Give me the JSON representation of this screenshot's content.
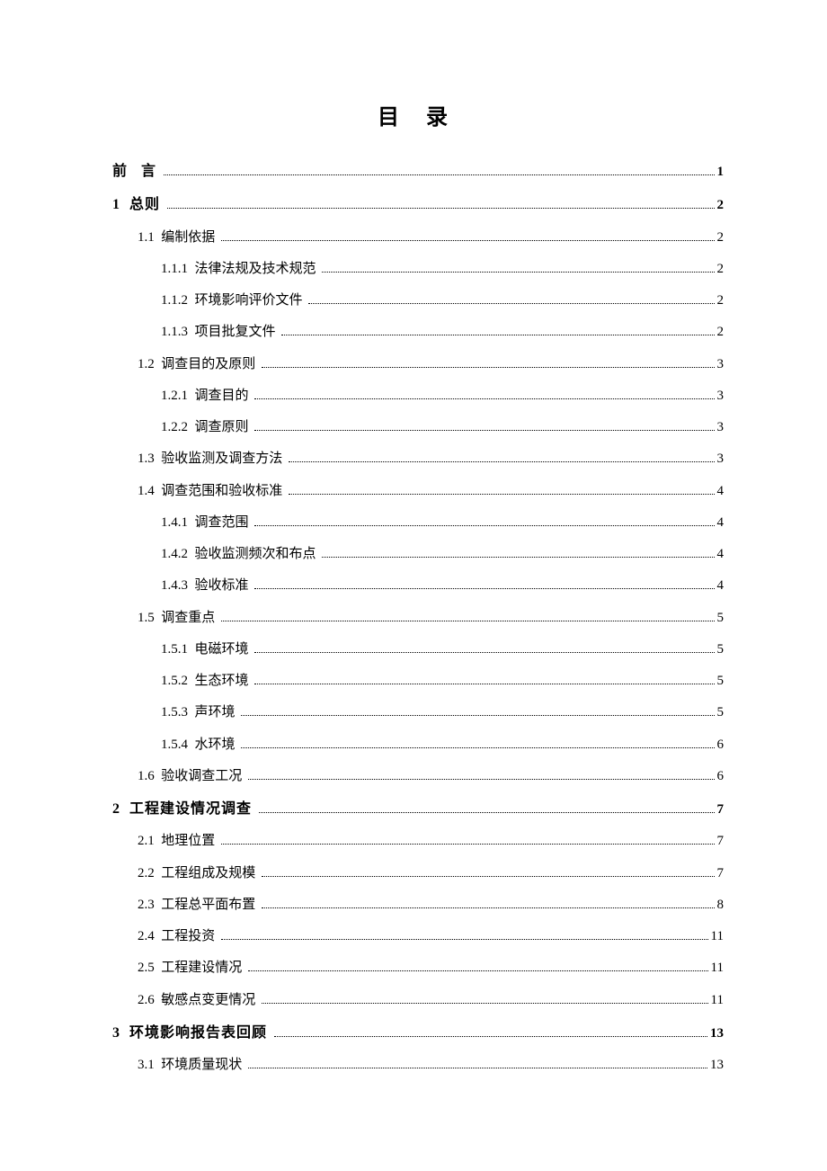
{
  "title": "目 录",
  "text_color": "#000000",
  "background_color": "#ffffff",
  "title_fontsize": 24,
  "body_fontsize": 15,
  "entries": [
    {
      "level": 0,
      "num": "前",
      "gap": "   ",
      "text": "言",
      "page": "1"
    },
    {
      "level": 0,
      "num": "1",
      "gap": "  ",
      "text": "总则",
      "page": "2"
    },
    {
      "level": 1,
      "num": "1.1",
      "gap": "  ",
      "text": "编制依据",
      "page": "2"
    },
    {
      "level": 2,
      "num": "1.1.1",
      "gap": "  ",
      "text": "法律法规及技术规范",
      "page": "2"
    },
    {
      "level": 2,
      "num": "1.1.2",
      "gap": "  ",
      "text": "环境影响评价文件",
      "page": "2"
    },
    {
      "level": 2,
      "num": "1.1.3",
      "gap": "  ",
      "text": "项目批复文件",
      "page": "2"
    },
    {
      "level": 1,
      "num": "1.2",
      "gap": "  ",
      "text": "调查目的及原则",
      "page": "3"
    },
    {
      "level": 2,
      "num": "1.2.1",
      "gap": "  ",
      "text": "调查目的",
      "page": "3"
    },
    {
      "level": 2,
      "num": "1.2.2",
      "gap": "  ",
      "text": "调查原则",
      "page": "3"
    },
    {
      "level": 1,
      "num": "1.3",
      "gap": "  ",
      "text": "验收监测及调查方法",
      "page": "3"
    },
    {
      "level": 1,
      "num": "1.4",
      "gap": "  ",
      "text": "调查范围和验收标准",
      "page": "4"
    },
    {
      "level": 2,
      "num": "1.4.1",
      "gap": "  ",
      "text": "调查范围",
      "page": "4"
    },
    {
      "level": 2,
      "num": "1.4.2",
      "gap": "  ",
      "text": "验收监测频次和布点",
      "page": "4"
    },
    {
      "level": 2,
      "num": "1.4.3",
      "gap": "  ",
      "text": "验收标准",
      "page": "4"
    },
    {
      "level": 1,
      "num": "1.5",
      "gap": "  ",
      "text": "调查重点",
      "page": "5"
    },
    {
      "level": 2,
      "num": "1.5.1",
      "gap": "  ",
      "text": "电磁环境",
      "page": "5"
    },
    {
      "level": 2,
      "num": "1.5.2",
      "gap": "  ",
      "text": "生态环境",
      "page": "5"
    },
    {
      "level": 2,
      "num": "1.5.3",
      "gap": "  ",
      "text": "声环境",
      "page": "5"
    },
    {
      "level": 2,
      "num": "1.5.4",
      "gap": "  ",
      "text": "水环境",
      "page": "6"
    },
    {
      "level": 1,
      "num": "1.6",
      "gap": "  ",
      "text": "验收调查工况",
      "page": "6"
    },
    {
      "level": 0,
      "num": "2",
      "gap": "  ",
      "text": "工程建设情况调查",
      "page": "7"
    },
    {
      "level": 1,
      "num": "2.1",
      "gap": "  ",
      "text": "地理位置",
      "page": "7"
    },
    {
      "level": 1,
      "num": "2.2",
      "gap": "  ",
      "text": "工程组成及规模",
      "page": "7"
    },
    {
      "level": 1,
      "num": "2.3",
      "gap": "  ",
      "text": "工程总平面布置",
      "page": "8"
    },
    {
      "level": 1,
      "num": "2.4",
      "gap": "  ",
      "text": "工程投资",
      "page": "11"
    },
    {
      "level": 1,
      "num": "2.5",
      "gap": "  ",
      "text": "工程建设情况",
      "page": "11"
    },
    {
      "level": 1,
      "num": "2.6",
      "gap": "  ",
      "text": "敏感点变更情况",
      "page": "11"
    },
    {
      "level": 0,
      "num": "3",
      "gap": "  ",
      "text": "环境影响报告表回顾",
      "page": "13"
    },
    {
      "level": 1,
      "num": "3.1",
      "gap": "  ",
      "text": "环境质量现状",
      "page": "13"
    }
  ]
}
